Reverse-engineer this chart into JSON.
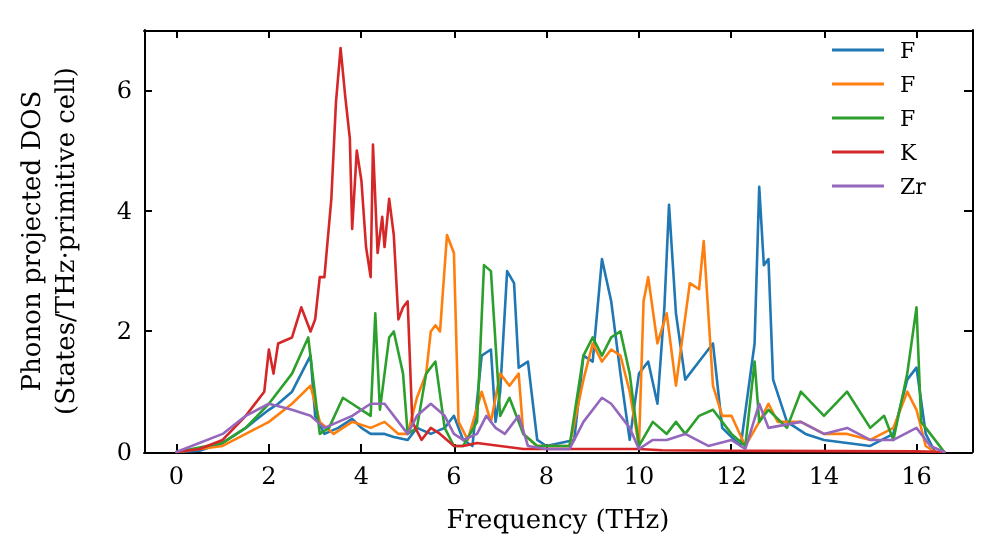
{
  "chart_data": {
    "type": "line",
    "xlabel": "Frequency (THz)",
    "ylabel": "Phonon projected DOS\n(States/THz·primitive cell)",
    "xlim": [
      -0.7,
      17.2
    ],
    "xticks": [
      0,
      2,
      4,
      6,
      8,
      10,
      12,
      14,
      16
    ],
    "ylim": [
      0,
      7
    ],
    "yticks": [
      0,
      2,
      4,
      6
    ],
    "legend": "top right",
    "marker": "none",
    "line_style": "solid",
    "series": [
      {
        "name": "F",
        "color": "#1f77b4",
        "x": [
          0,
          0.5,
          1,
          1.5,
          2,
          2.2,
          2.5,
          2.9,
          3.0,
          3.2,
          3.5,
          3.8,
          4.0,
          4.2,
          4.5,
          4.7,
          5,
          5.2,
          5.5,
          5.8,
          6.0,
          6.2,
          6.4,
          6.6,
          6.8,
          6.9,
          7.0,
          7.15,
          7.3,
          7.4,
          7.6,
          7.8,
          8,
          8.6,
          8.8,
          9.0,
          9.2,
          9.4,
          9.6,
          9.8,
          10.0,
          10.2,
          10.4,
          10.55,
          10.65,
          10.8,
          11.0,
          11.3,
          11.6,
          11.8,
          12.2,
          12.5,
          12.6,
          12.7,
          12.8,
          12.9,
          13.2,
          13.6,
          14,
          15,
          15.5,
          15.8,
          16.0,
          16.2,
          16.4
        ],
        "values": [
          0,
          0.02,
          0.15,
          0.4,
          0.7,
          0.8,
          1.0,
          1.6,
          0.6,
          0.3,
          0.4,
          0.55,
          0.4,
          0.3,
          0.3,
          0.25,
          0.2,
          0.4,
          0.3,
          0.4,
          0.6,
          0.2,
          0.1,
          1.6,
          1.7,
          0.5,
          1.0,
          3.0,
          2.8,
          1.4,
          1.5,
          0.2,
          0.1,
          0.2,
          1.6,
          1.5,
          3.2,
          2.5,
          1.3,
          0.2,
          1.3,
          1.5,
          0.8,
          2.4,
          4.1,
          2.3,
          1.2,
          1.5,
          1.8,
          0.4,
          0.1,
          1.8,
          4.4,
          3.1,
          3.2,
          1.2,
          0.5,
          0.3,
          0.2,
          0.1,
          0.3,
          1.2,
          1.4,
          0.3,
          0
        ]
      },
      {
        "name": "F",
        "color": "#ff7f0e",
        "x": [
          0,
          1,
          1.5,
          2,
          2.5,
          2.9,
          3.1,
          3.4,
          3.8,
          4.2,
          4.5,
          4.8,
          5.0,
          5.2,
          5.4,
          5.5,
          5.6,
          5.7,
          5.85,
          6.0,
          6.1,
          6.3,
          6.6,
          6.8,
          7.0,
          7.2,
          7.4,
          7.5,
          7.8,
          8.5,
          8.8,
          9.0,
          9.2,
          9.4,
          9.6,
          9.8,
          10.0,
          10.1,
          10.2,
          10.4,
          10.6,
          10.8,
          11.1,
          11.3,
          11.4,
          11.6,
          11.8,
          12,
          12.3,
          12.6,
          12.8,
          13,
          13.5,
          14,
          14.5,
          15,
          15.5,
          15.8,
          16,
          16.2,
          16.4
        ],
        "values": [
          0,
          0.1,
          0.3,
          0.5,
          0.8,
          1.1,
          0.5,
          0.3,
          0.5,
          0.4,
          0.5,
          0.3,
          0.3,
          0.9,
          1.3,
          2.0,
          2.1,
          2.0,
          3.6,
          3.3,
          0.5,
          0.2,
          1.0,
          0.5,
          1.3,
          1.1,
          1.3,
          0.3,
          0.1,
          0.1,
          1.2,
          1.8,
          1.5,
          1.7,
          1.6,
          1.0,
          0.1,
          2.5,
          2.9,
          1.8,
          2.3,
          1.1,
          2.8,
          2.7,
          3.5,
          1.1,
          0.6,
          0.6,
          0.1,
          0.5,
          0.8,
          0.5,
          0.5,
          0.3,
          0.3,
          0.2,
          0.4,
          1.0,
          0.7,
          0.1,
          0
        ]
      },
      {
        "name": "F",
        "color": "#2ca02c",
        "x": [
          0,
          1,
          1.5,
          2,
          2.5,
          2.85,
          3.1,
          3.3,
          3.6,
          3.8,
          4.0,
          4.2,
          4.3,
          4.4,
          4.6,
          4.7,
          4.9,
          5.0,
          5.2,
          5.4,
          5.6,
          5.8,
          6.0,
          6.2,
          6.5,
          6.65,
          6.8,
          7.0,
          7.2,
          7.5,
          7.8,
          8.5,
          8.8,
          9.0,
          9.2,
          9.4,
          9.6,
          9.8,
          10.0,
          10.3,
          10.6,
          10.8,
          11,
          11.3,
          11.6,
          12,
          12.3,
          12.5,
          12.6,
          12.8,
          13.2,
          13.5,
          14,
          14.5,
          15,
          15.3,
          15.5,
          15.8,
          16.0,
          16.1,
          16.3,
          16.6
        ],
        "values": [
          0,
          0.15,
          0.4,
          0.8,
          1.3,
          1.9,
          0.3,
          0.4,
          0.9,
          0.8,
          0.7,
          0.6,
          2.3,
          0.7,
          1.9,
          2.0,
          1.3,
          0.3,
          0.4,
          1.3,
          1.5,
          0.4,
          0.1,
          0.1,
          0.5,
          3.1,
          3.0,
          0.6,
          0.9,
          0.3,
          0.1,
          0.1,
          1.6,
          1.9,
          1.6,
          1.9,
          2.0,
          1.3,
          0.1,
          0.5,
          0.3,
          0.5,
          0.3,
          0.6,
          0.7,
          0.3,
          0.1,
          1.5,
          0.5,
          0.7,
          0.4,
          1.0,
          0.6,
          1.0,
          0.4,
          0.6,
          0.2,
          1.3,
          2.4,
          0.5,
          0.3,
          0
        ]
      },
      {
        "name": "K",
        "color": "#d62728",
        "x": [
          0,
          0.5,
          1,
          1.5,
          1.9,
          2.0,
          2.1,
          2.2,
          2.5,
          2.7,
          2.9,
          3.0,
          3.1,
          3.2,
          3.35,
          3.45,
          3.55,
          3.65,
          3.75,
          3.8,
          3.9,
          4.0,
          4.1,
          4.2,
          4.25,
          4.35,
          4.45,
          4.5,
          4.6,
          4.7,
          4.8,
          4.9,
          5.0,
          5.1,
          5.3,
          5.5,
          5.7,
          6,
          6.2,
          6.5,
          7,
          7.5,
          8,
          9,
          10,
          10.5,
          12,
          16,
          16.6
        ],
        "values": [
          0,
          0.05,
          0.2,
          0.6,
          1.0,
          1.7,
          1.3,
          1.8,
          1.9,
          2.4,
          2.0,
          2.2,
          2.9,
          2.9,
          4.2,
          5.8,
          6.7,
          5.9,
          5.2,
          3.7,
          5.0,
          4.5,
          3.4,
          2.9,
          5.1,
          3.3,
          3.9,
          3.4,
          4.2,
          3.6,
          2.2,
          2.4,
          2.5,
          0.5,
          0.2,
          0.4,
          0.3,
          0.1,
          0.1,
          0.15,
          0.1,
          0.05,
          0.05,
          0.05,
          0.05,
          0.03,
          0.02,
          0.01,
          0
        ]
      },
      {
        "name": "Zr",
        "color": "#9467bd",
        "x": [
          0,
          1,
          1.5,
          2,
          2.5,
          2.9,
          3.2,
          3.5,
          3.8,
          4.2,
          4.5,
          4.8,
          5,
          5.2,
          5.5,
          5.8,
          6.0,
          6.2,
          6.5,
          6.7,
          6.9,
          7.1,
          7.4,
          7.6,
          8,
          8.5,
          8.8,
          9.2,
          9.4,
          9.8,
          10.0,
          10.3,
          10.6,
          11,
          11.5,
          12,
          12.3,
          12.6,
          12.8,
          13.5,
          14,
          14.5,
          15,
          15.5,
          16,
          16.3,
          16.6
        ],
        "values": [
          0,
          0.3,
          0.6,
          0.8,
          0.7,
          0.6,
          0.4,
          0.5,
          0.6,
          0.8,
          0.8,
          0.5,
          0.3,
          0.6,
          0.8,
          0.6,
          0.3,
          0.2,
          0.3,
          0.6,
          0.4,
          0.3,
          0.6,
          0.1,
          0.05,
          0.05,
          0.5,
          0.9,
          0.8,
          0.4,
          0.05,
          0.2,
          0.2,
          0.3,
          0.1,
          0.2,
          0.05,
          0.8,
          0.4,
          0.5,
          0.3,
          0.4,
          0.2,
          0.2,
          0.4,
          0.1,
          0
        ]
      }
    ]
  }
}
